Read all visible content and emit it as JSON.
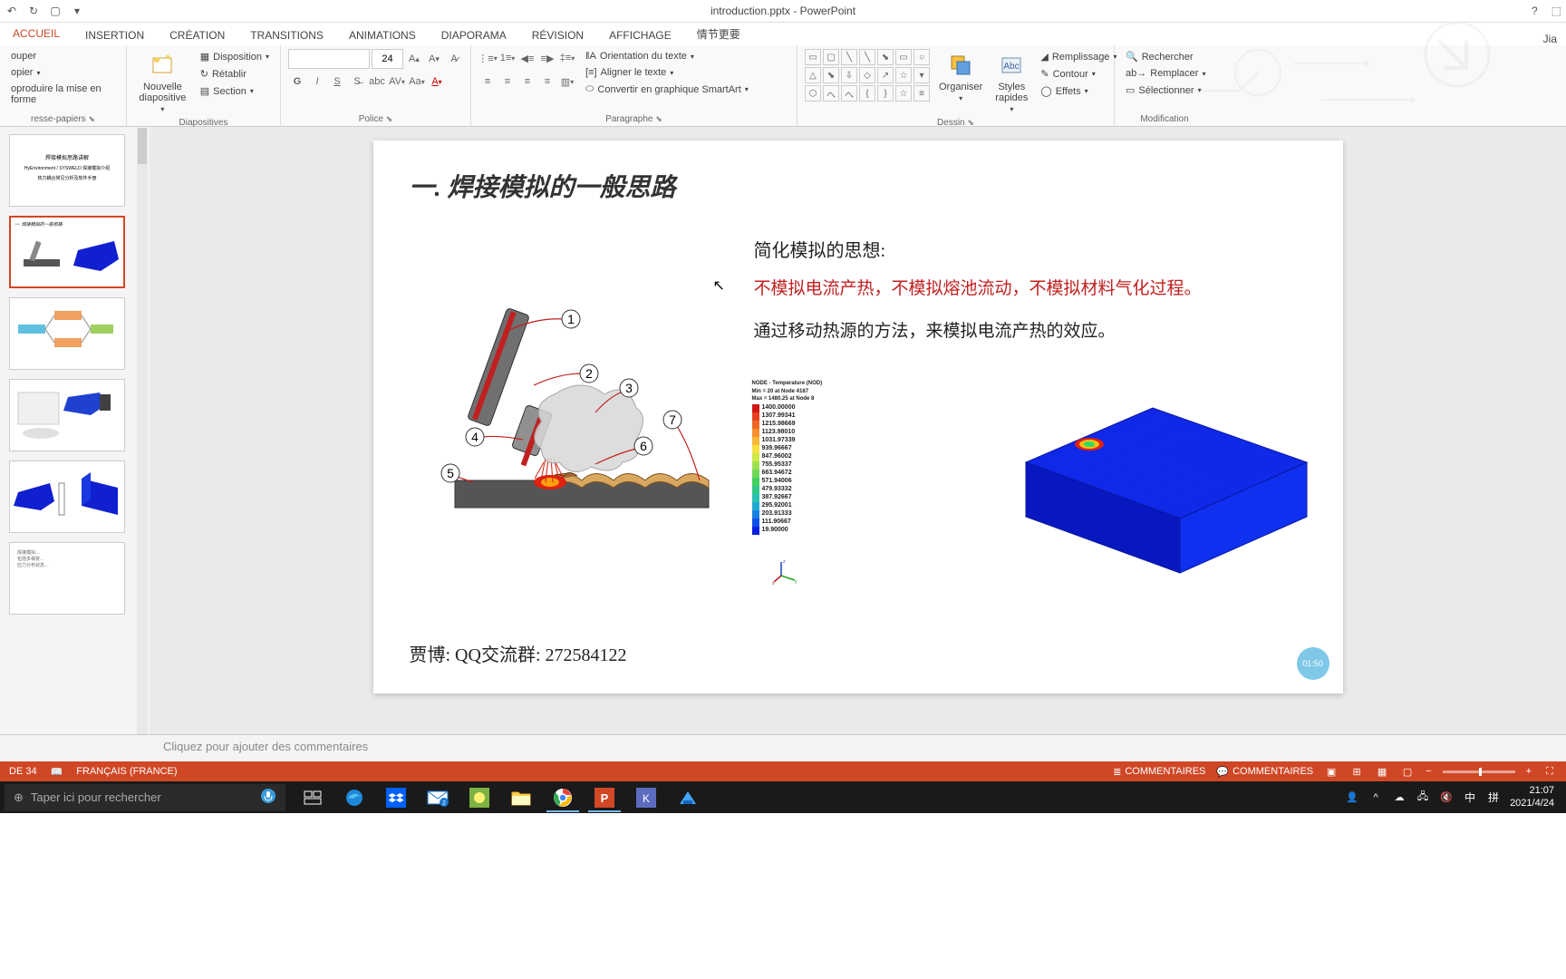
{
  "title": "introduction.pptx - PowerPoint",
  "qat": {
    "save": "💾",
    "undo": "↶",
    "redo": "↷"
  },
  "titlebar_right": {
    "help": "?",
    "display": "⬚",
    "user": "Jia"
  },
  "tabs": [
    "ACCUEIL",
    "INSERTION",
    "CRÉATION",
    "TRANSITIONS",
    "ANIMATIONS",
    "DIAPORAMA",
    "RÉVISION",
    "AFFICHAGE",
    "情节更要"
  ],
  "ribbon": {
    "clipboard": {
      "cut": "ouper",
      "copy": "opier",
      "paste_format": "oproduire la mise en forme",
      "label": "resse-papiers"
    },
    "slides": {
      "new_slide": "Nouvelle\ndiapositive",
      "layout": "Disposition",
      "reset": "Rétablir",
      "section": "Section",
      "label": "Diapositives"
    },
    "font": {
      "size": "24",
      "label": "Police"
    },
    "paragraph": {
      "text_dir": "Orientation du texte",
      "align": "Aligner le texte",
      "smartart": "Convertir en graphique SmartArt",
      "label": "Paragraphe"
    },
    "drawing": {
      "arrange": "Organiser",
      "styles": "Styles\nrapides",
      "fill": "Remplissage",
      "contour": "Contour",
      "effects": "Effets",
      "label": "Dessin"
    },
    "editing": {
      "find": "Rechercher",
      "replace": "Remplacer",
      "select": "Sélectionner",
      "label": "Modification"
    }
  },
  "slide": {
    "title": "一. 焊接模拟的一般思路",
    "subtitle": "简化模拟的思想:",
    "red_text": "不模拟电流产热，不模拟熔池流动，不模拟材料气化过程。",
    "black_text": "通过移动热源的方法，来模拟电流产热的效应。",
    "footer": "贾博: QQ交流群: 272584122",
    "badge": "01:50",
    "callouts": [
      "1",
      "2",
      "3",
      "4",
      "5",
      "6",
      "7"
    ]
  },
  "colorbar": {
    "header1": "NODE - Temperature (NOD)",
    "header2": "Min = 20 at Node 4187",
    "header3": "Max = 1480.25 at Node 8",
    "values": [
      "1400.00000",
      "1307.99341",
      "1215.98669",
      "1123.98010",
      "1031.97339",
      "939.96667",
      "847.96002",
      "755.95337",
      "663.94672",
      "571.94006",
      "479.93332",
      "387.92667",
      "295.92001",
      "203.91333",
      "111.90667",
      "19.90000"
    ],
    "colors": [
      "#d01818",
      "#e84020",
      "#f06828",
      "#f89030",
      "#f8b838",
      "#f8e040",
      "#d0e848",
      "#a0e050",
      "#70d858",
      "#40d060",
      "#30c888",
      "#28c0b0",
      "#20a8d0",
      "#1880e0",
      "#1050e8",
      "#0820e0"
    ]
  },
  "notes_placeholder": "Cliquez pour ajouter des commentaires",
  "statusbar": {
    "slide": "DE 34",
    "lang": "FRANÇAIS (FRANCE)",
    "comments1": "COMMENTAIRES",
    "comments2": "COMMENTAIRES"
  },
  "taskbar": {
    "search": "Taper ici pour rechercher",
    "time": "21:07",
    "date": "2021/4/24",
    "ime1": "中",
    "ime2": "拼"
  }
}
